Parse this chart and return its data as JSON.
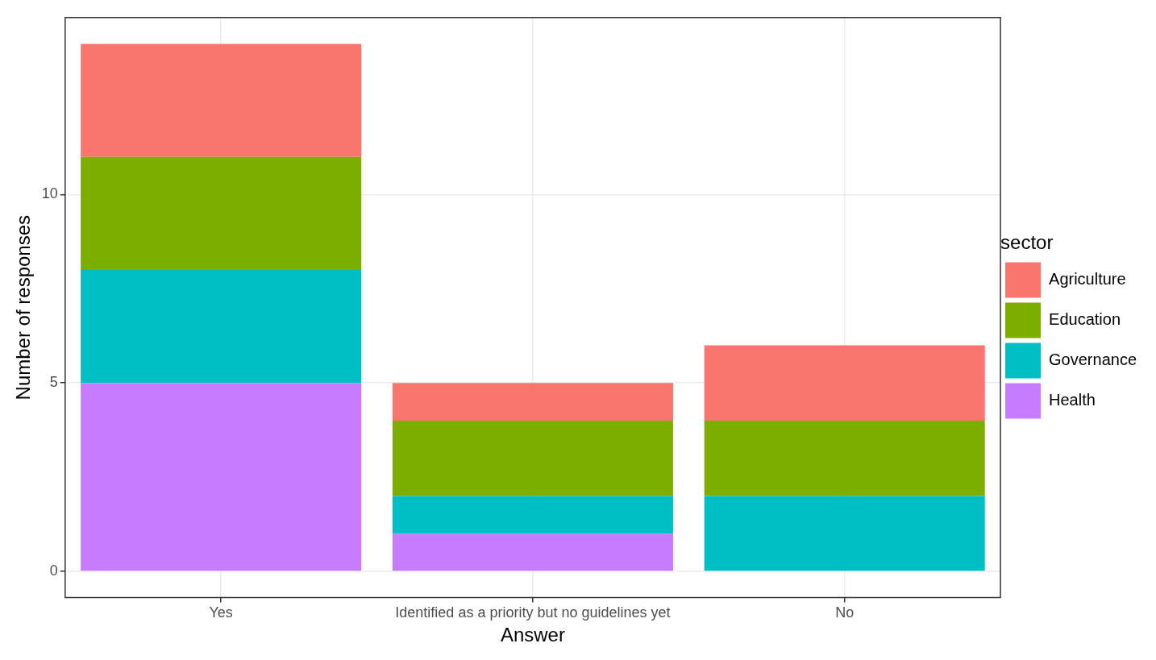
{
  "chart_data": {
    "type": "bar",
    "xlabel": "Answer",
    "ylabel": "Number of responses",
    "legend_title": "sector",
    "categories": [
      "Yes",
      "Identified as a priority but no guidelines yet",
      "No"
    ],
    "series": [
      {
        "name": "Health",
        "color": "#c77cff",
        "values": [
          5,
          1,
          0
        ]
      },
      {
        "name": "Governance",
        "color": "#00bfc4",
        "values": [
          3,
          1,
          2
        ]
      },
      {
        "name": "Education",
        "color": "#7cae00",
        "values": [
          3,
          2,
          2
        ]
      },
      {
        "name": "Agriculture",
        "color": "#f8766d",
        "values": [
          3,
          1,
          2
        ]
      }
    ],
    "stacked": true,
    "ylim": [
      -0.7,
      14.7
    ],
    "yticks": [
      0,
      5,
      10
    ],
    "grid": true,
    "legend": "right"
  }
}
